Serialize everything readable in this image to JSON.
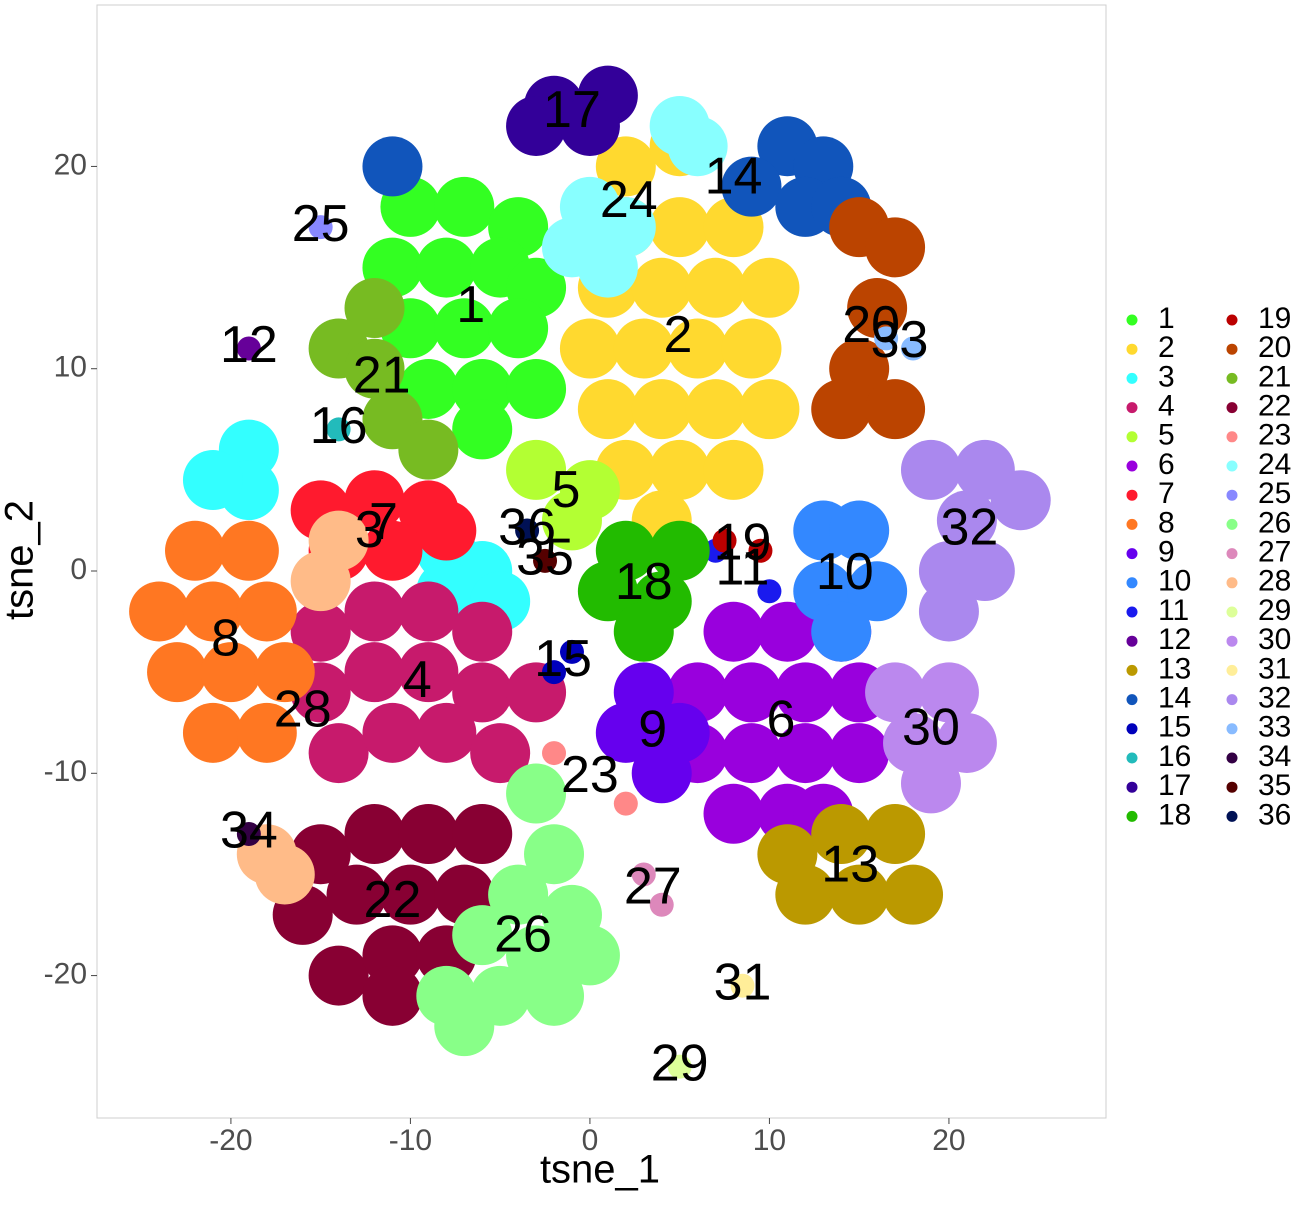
{
  "chart_data": {
    "type": "scatter",
    "x_label": "tsne_1",
    "y_label": "tsne_2",
    "xlim": [
      -27.46,
      28.75
    ],
    "ylim": [
      -27.04,
      27.98
    ],
    "xticks": [
      -20,
      -10,
      0,
      10,
      20
    ],
    "yticks": [
      -20,
      -10,
      0,
      10,
      20
    ],
    "legend": "right",
    "series": [
      {
        "name": "1",
        "color": "#33ff22",
        "x": [
          -10,
          -7,
          -4,
          -11,
          -8,
          -5,
          -3,
          -10,
          -7,
          -4,
          -9,
          -6,
          -3,
          -6
        ],
        "y": [
          18,
          18,
          17,
          15,
          15,
          15,
          14,
          12,
          12,
          12,
          9,
          9,
          9,
          7
        ]
      },
      {
        "name": "2",
        "color": "#ffd92f",
        "x": [
          2,
          5,
          2,
          5,
          8,
          1,
          4,
          7,
          10,
          0,
          3,
          6,
          9,
          1,
          4,
          7,
          10,
          2,
          5,
          8,
          4
        ],
        "y": [
          20,
          21,
          17,
          17,
          17,
          14,
          14,
          14,
          14,
          11,
          11,
          11,
          11,
          8,
          8,
          8,
          8,
          5,
          5,
          5,
          2.5
        ]
      },
      {
        "name": "3",
        "color": "#33ffff",
        "x": [
          -8,
          -6,
          -8,
          -5,
          -19,
          -19,
          -21
        ],
        "y": [
          1,
          0,
          -1,
          -1.5,
          6,
          4,
          4.5
        ]
      },
      {
        "name": "4",
        "color": "#c71a6c",
        "x": [
          -15,
          -12,
          -9,
          -6,
          -15,
          -12,
          -9,
          -6,
          -3,
          -14,
          -11,
          -8,
          -5
        ],
        "y": [
          -3,
          -2,
          -2,
          -3,
          -6,
          -5,
          -5,
          -6,
          -6,
          -9,
          -8,
          -8,
          -9
        ]
      },
      {
        "name": "5",
        "color": "#b3ff33",
        "x": [
          -3,
          0,
          -1
        ],
        "y": [
          5,
          4,
          2.5
        ]
      },
      {
        "name": "6",
        "color": "#9900dd",
        "x": [
          8,
          11,
          14,
          6,
          9,
          12,
          15,
          6,
          9,
          12,
          15,
          8,
          11,
          13
        ],
        "y": [
          -3,
          -3,
          -3,
          -6,
          -6,
          -6,
          -6,
          -9,
          -9,
          -9,
          -9,
          -12,
          -12,
          -12
        ]
      },
      {
        "name": "7",
        "color": "#ff1a2e",
        "x": [
          -15,
          -12,
          -9,
          -14,
          -11,
          -8
        ],
        "y": [
          3,
          3.5,
          3,
          1,
          1,
          2
        ]
      },
      {
        "name": "8",
        "color": "#ff7722",
        "x": [
          -22,
          -19,
          -24,
          -21,
          -18,
          -23,
          -20,
          -17,
          -21,
          -18
        ],
        "y": [
          1,
          1,
          -2,
          -2,
          -2,
          -5,
          -5,
          -5,
          -8,
          -8
        ]
      },
      {
        "name": "9",
        "color": "#6600ee",
        "x": [
          3,
          2,
          5,
          4
        ],
        "y": [
          -6,
          -8,
          -8,
          -10
        ]
      },
      {
        "name": "10",
        "color": "#3388ff",
        "x": [
          13,
          15,
          13,
          16,
          14
        ],
        "y": [
          2,
          2,
          -1,
          -1,
          -3
        ]
      },
      {
        "name": "11",
        "color": "#1a1aee",
        "x": [
          7,
          10
        ],
        "y": [
          1,
          -1
        ]
      },
      {
        "name": "12",
        "color": "#660099",
        "x": [
          -19
        ],
        "y": [
          11
        ]
      },
      {
        "name": "13",
        "color": "#bb9900",
        "x": [
          11,
          14,
          17,
          12,
          15,
          18
        ],
        "y": [
          -14,
          -13,
          -13,
          -16,
          -16,
          -16
        ]
      },
      {
        "name": "14",
        "color": "#1155bb",
        "x": [
          -11,
          11,
          13,
          9,
          12,
          14
        ],
        "y": [
          20,
          21,
          20,
          19,
          18,
          18
        ]
      },
      {
        "name": "15",
        "color": "#0000bb",
        "x": [
          -1,
          -2
        ],
        "y": [
          -4,
          -5
        ]
      },
      {
        "name": "16",
        "color": "#22bbbb",
        "x": [
          -14
        ],
        "y": [
          7
        ]
      },
      {
        "name": "17",
        "color": "#330099",
        "x": [
          -2,
          1,
          -3,
          0
        ],
        "y": [
          23,
          23.5,
          22,
          22
        ]
      },
      {
        "name": "18",
        "color": "#22bb00",
        "x": [
          2,
          5,
          1,
          4,
          3
        ],
        "y": [
          1,
          1,
          -1,
          -1.5,
          -3
        ]
      },
      {
        "name": "19",
        "color": "#bb0000",
        "x": [
          7.5,
          9.5
        ],
        "y": [
          1.5,
          1
        ]
      },
      {
        "name": "20",
        "color": "#bb4400",
        "x": [
          15,
          17,
          16,
          15,
          14,
          17
        ],
        "y": [
          17,
          16,
          13,
          10,
          8,
          8
        ]
      },
      {
        "name": "21",
        "color": "#77bb22",
        "x": [
          -12,
          -14,
          -12,
          -11,
          -9
        ],
        "y": [
          13,
          11,
          10,
          7.5,
          6
        ]
      },
      {
        "name": "22",
        "color": "#880033",
        "x": [
          -15,
          -12,
          -9,
          -6,
          -16,
          -13,
          -10,
          -7,
          -14,
          -11,
          -8,
          -11
        ],
        "y": [
          -14,
          -13,
          -13,
          -13,
          -17,
          -16,
          -16,
          -16,
          -20,
          -19,
          -19,
          -21
        ]
      },
      {
        "name": "23",
        "color": "#ff8888",
        "x": [
          -2,
          2
        ],
        "y": [
          -9,
          -11.5
        ]
      },
      {
        "name": "24",
        "color": "#88ffff",
        "x": [
          0,
          2,
          -1,
          5,
          6,
          1
        ],
        "y": [
          18,
          17,
          16,
          22,
          21,
          15
        ]
      },
      {
        "name": "25",
        "color": "#8888ff",
        "x": [
          -15
        ],
        "y": [
          17
        ]
      },
      {
        "name": "26",
        "color": "#88ff88",
        "x": [
          -3,
          -2,
          -4,
          -1,
          -6,
          -3,
          0,
          -8,
          -5,
          -2,
          -7
        ],
        "y": [
          -11,
          -14,
          -16,
          -17,
          -18,
          -19,
          -19,
          -21,
          -21,
          -21,
          -22.5
        ]
      },
      {
        "name": "27",
        "color": "#dd88bb",
        "x": [
          3,
          4
        ],
        "y": [
          -15,
          -16.5
        ]
      },
      {
        "name": "28",
        "color": "#ffbb88",
        "x": [
          -14,
          -15,
          -18,
          -17
        ],
        "y": [
          1.5,
          -0.5,
          -14,
          -15
        ]
      },
      {
        "name": "29",
        "color": "#ddff99",
        "x": [
          5
        ],
        "y": [
          -24.5
        ]
      },
      {
        "name": "30",
        "color": "#bb88ee",
        "x": [
          17,
          20,
          18,
          21,
          19
        ],
        "y": [
          -6,
          -6,
          -8.5,
          -8.5,
          -10.5
        ]
      },
      {
        "name": "31",
        "color": "#ffee99",
        "x": [
          8.5
        ],
        "y": [
          -20.5
        ]
      },
      {
        "name": "32",
        "color": "#aa88ee",
        "x": [
          19,
          22,
          24,
          21,
          20,
          22,
          20
        ],
        "y": [
          5,
          5,
          3.5,
          2.5,
          0,
          0,
          -2
        ]
      },
      {
        "name": "33",
        "color": "#88bbff",
        "x": [
          18,
          16.5
        ],
        "y": [
          11,
          11.5
        ]
      },
      {
        "name": "34",
        "color": "#330044",
        "x": [
          -19
        ],
        "y": [
          -13
        ]
      },
      {
        "name": "35",
        "color": "#550000",
        "x": [
          -2.5
        ],
        "y": [
          0.5
        ]
      },
      {
        "name": "36",
        "color": "#001155",
        "x": [
          -3.5
        ],
        "y": [
          2
        ]
      }
    ]
  }
}
